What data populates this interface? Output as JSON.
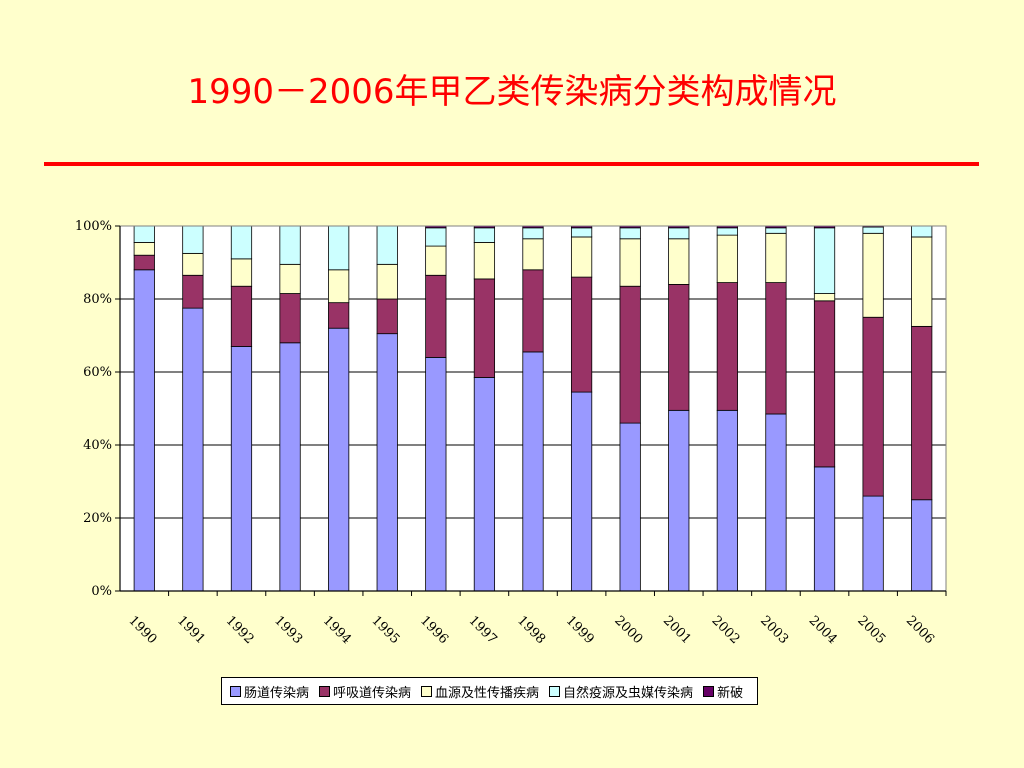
{
  "title": "1990－2006年甲乙类传染病分类构成情况",
  "chart_data": {
    "type": "bar",
    "stacked": true,
    "percent": true,
    "categories": [
      "1990",
      "1991",
      "1992",
      "1993",
      "1994",
      "1995",
      "1996",
      "1997",
      "1998",
      "1999",
      "2000",
      "2001",
      "2002",
      "2003",
      "2004",
      "2005",
      "2006"
    ],
    "yticks": [
      "0%",
      "20%",
      "40%",
      "60%",
      "80%",
      "100%"
    ],
    "ylim": [
      0,
      100
    ],
    "grid": true,
    "legend_position": "bottom",
    "series": [
      {
        "name": "肠道传染病",
        "color": "#9999FF",
        "values": [
          88,
          77.5,
          67,
          68,
          72,
          70.5,
          64,
          58.5,
          65.5,
          54.5,
          46,
          49.5,
          49.5,
          48.5,
          34,
          26,
          25
        ]
      },
      {
        "name": "呼吸道传染病",
        "color": "#993366",
        "values": [
          4,
          9,
          16.5,
          13.5,
          7,
          9.5,
          22.5,
          27,
          22.5,
          31.5,
          37.5,
          34.5,
          35,
          36,
          45.5,
          49,
          47.5
        ]
      },
      {
        "name": "血源及性传播疾病",
        "color": "#FFFFCC",
        "values": [
          3.5,
          6,
          7.5,
          8,
          9,
          9.5,
          8,
          10,
          8.5,
          11,
          13,
          12.5,
          13,
          13.5,
          2,
          23,
          24.5
        ]
      },
      {
        "name": "自然疫源及虫媒传染病",
        "color": "#CCFFFF",
        "values": [
          4.5,
          7.5,
          9,
          10.5,
          12,
          10.5,
          5,
          4,
          3,
          2.5,
          3,
          3,
          2,
          1.5,
          18,
          1.7,
          3
        ]
      },
      {
        "name": "新破",
        "color": "#660066",
        "values": [
          0,
          0,
          0,
          0,
          0,
          0,
          0.5,
          0.5,
          0.5,
          0.5,
          0.5,
          0.5,
          0.5,
          0.5,
          0.5,
          0.3,
          0
        ]
      }
    ]
  }
}
